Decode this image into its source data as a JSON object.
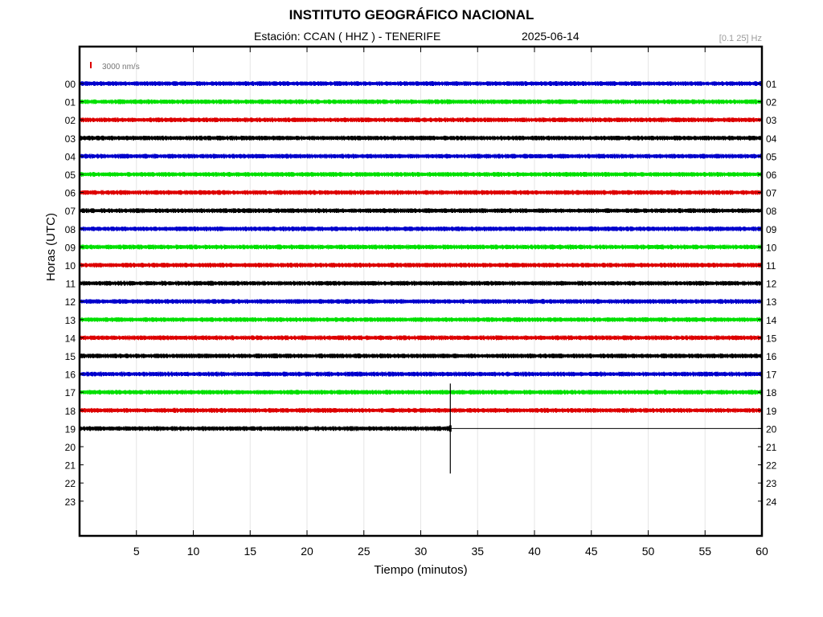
{
  "header": {
    "title": "INSTITUTO GEOGRÁFICO NACIONAL",
    "station": "Estación:  CCAN ( HHZ ) - TENERIFE",
    "date": "2025-06-14",
    "band": "[0.1 25] Hz"
  },
  "chart_data": {
    "type": "line",
    "title": "INSTITUTO GEOGRÁFICO NACIONAL",
    "subtitle": "Estación:  CCAN ( HHZ ) - TENERIFE",
    "xlabel": "Tiempo (minutos)",
    "ylabel": "Horas (UTC)",
    "xlim": [
      0,
      60
    ],
    "x_ticks": [
      5,
      10,
      15,
      20,
      25,
      30,
      35,
      40,
      45,
      50,
      55,
      60
    ],
    "y_ticks_left": [
      "00",
      "01",
      "02",
      "03",
      "04",
      "05",
      "06",
      "07",
      "08",
      "09",
      "10",
      "11",
      "12",
      "13",
      "14",
      "15",
      "16",
      "17",
      "18",
      "19",
      "20",
      "21",
      "22",
      "23"
    ],
    "y_ticks_right": [
      "01",
      "02",
      "03",
      "04",
      "05",
      "06",
      "07",
      "08",
      "09",
      "10",
      "11",
      "12",
      "13",
      "14",
      "15",
      "16",
      "17",
      "18",
      "19",
      "20",
      "21",
      "22",
      "23",
      "24"
    ],
    "grid": true,
    "scale_label": "3000 nm/s",
    "color_cycle": [
      "#0000cc",
      "#00e000",
      "#dd0000",
      "#000000"
    ],
    "series": [
      {
        "hour": 0,
        "end_minute": 60
      },
      {
        "hour": 1,
        "end_minute": 60
      },
      {
        "hour": 2,
        "end_minute": 60
      },
      {
        "hour": 3,
        "end_minute": 60
      },
      {
        "hour": 4,
        "end_minute": 60
      },
      {
        "hour": 5,
        "end_minute": 60
      },
      {
        "hour": 6,
        "end_minute": 60
      },
      {
        "hour": 7,
        "end_minute": 60
      },
      {
        "hour": 8,
        "end_minute": 60
      },
      {
        "hour": 9,
        "end_minute": 60
      },
      {
        "hour": 10,
        "end_minute": 60
      },
      {
        "hour": 11,
        "end_minute": 60
      },
      {
        "hour": 12,
        "end_minute": 60
      },
      {
        "hour": 13,
        "end_minute": 60
      },
      {
        "hour": 14,
        "end_minute": 60
      },
      {
        "hour": 15,
        "end_minute": 60
      },
      {
        "hour": 16,
        "end_minute": 60
      },
      {
        "hour": 17,
        "end_minute": 60
      },
      {
        "hour": 18,
        "end_minute": 60
      },
      {
        "hour": 19,
        "end_minute": 32.6,
        "flat_to_minute": 60,
        "spike_minute": 32.6
      }
    ]
  }
}
